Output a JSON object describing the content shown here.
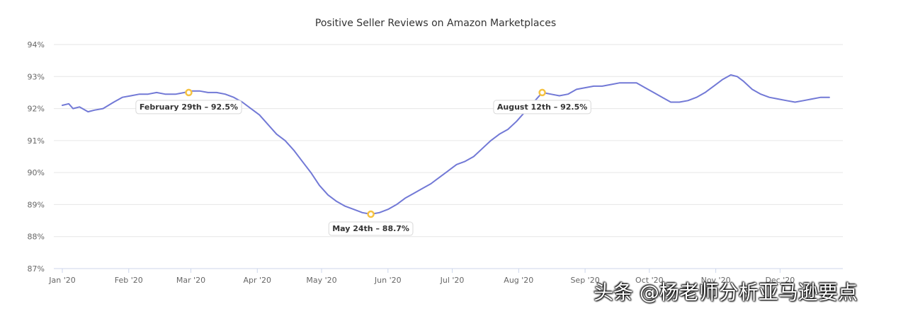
{
  "chart_data": {
    "type": "line",
    "title": "Positive Seller Reviews on Amazon Marketplaces",
    "xlabel": "",
    "ylabel": "",
    "ylim": [
      87,
      94
    ],
    "y_ticks": [
      "87%",
      "88%",
      "89%",
      "90%",
      "91%",
      "92%",
      "93%",
      "94%"
    ],
    "x_ticks": [
      "Jan '20",
      "Feb '20",
      "Mar '20",
      "Apr '20",
      "May '20",
      "Jun '20",
      "Jul '20",
      "Aug '20",
      "Sep '20",
      "Oct '20",
      "Nov '20",
      "Dec '20"
    ],
    "x_unit": "day of year (Jan 1 = 0)",
    "series": [
      {
        "name": "Positive Seller Reviews",
        "color": "#7279d6",
        "points": [
          [
            0,
            92.1
          ],
          [
            3,
            92.15
          ],
          [
            5,
            92.0
          ],
          [
            8,
            92.05
          ],
          [
            12,
            91.9
          ],
          [
            15,
            91.95
          ],
          [
            19,
            92.0
          ],
          [
            24,
            92.2
          ],
          [
            28,
            92.35
          ],
          [
            32,
            92.4
          ],
          [
            36,
            92.45
          ],
          [
            40,
            92.45
          ],
          [
            44,
            92.5
          ],
          [
            48,
            92.45
          ],
          [
            53,
            92.45
          ],
          [
            57,
            92.5
          ],
          [
            60,
            92.55
          ],
          [
            64,
            92.55
          ],
          [
            68,
            92.5
          ],
          [
            72,
            92.5
          ],
          [
            76,
            92.45
          ],
          [
            80,
            92.35
          ],
          [
            84,
            92.2
          ],
          [
            88,
            92.0
          ],
          [
            92,
            91.8
          ],
          [
            96,
            91.5
          ],
          [
            100,
            91.2
          ],
          [
            104,
            91.0
          ],
          [
            108,
            90.7
          ],
          [
            112,
            90.35
          ],
          [
            116,
            90.0
          ],
          [
            120,
            89.6
          ],
          [
            124,
            89.3
          ],
          [
            128,
            89.1
          ],
          [
            132,
            88.95
          ],
          [
            136,
            88.85
          ],
          [
            140,
            88.75
          ],
          [
            144,
            88.7
          ],
          [
            148,
            88.75
          ],
          [
            152,
            88.85
          ],
          [
            156,
            89.0
          ],
          [
            160,
            89.2
          ],
          [
            164,
            89.35
          ],
          [
            168,
            89.5
          ],
          [
            172,
            89.65
          ],
          [
            176,
            89.85
          ],
          [
            180,
            90.05
          ],
          [
            184,
            90.25
          ],
          [
            188,
            90.35
          ],
          [
            192,
            90.5
          ],
          [
            196,
            90.75
          ],
          [
            200,
            91.0
          ],
          [
            204,
            91.2
          ],
          [
            208,
            91.35
          ],
          [
            212,
            91.6
          ],
          [
            216,
            91.9
          ],
          [
            220,
            92.2
          ],
          [
            224,
            92.5
          ],
          [
            228,
            92.45
          ],
          [
            232,
            92.4
          ],
          [
            236,
            92.45
          ],
          [
            240,
            92.6
          ],
          [
            244,
            92.65
          ],
          [
            248,
            92.7
          ],
          [
            252,
            92.7
          ],
          [
            256,
            92.75
          ],
          [
            260,
            92.8
          ],
          [
            264,
            92.8
          ],
          [
            268,
            92.8
          ],
          [
            272,
            92.65
          ],
          [
            276,
            92.5
          ],
          [
            280,
            92.35
          ],
          [
            284,
            92.2
          ],
          [
            288,
            92.2
          ],
          [
            292,
            92.25
          ],
          [
            296,
            92.35
          ],
          [
            300,
            92.5
          ],
          [
            304,
            92.7
          ],
          [
            308,
            92.9
          ],
          [
            312,
            93.05
          ],
          [
            315,
            93.0
          ],
          [
            318,
            92.85
          ],
          [
            322,
            92.6
          ],
          [
            326,
            92.45
          ],
          [
            330,
            92.35
          ],
          [
            334,
            92.3
          ],
          [
            338,
            92.25
          ],
          [
            342,
            92.2
          ],
          [
            346,
            92.25
          ],
          [
            350,
            92.3
          ],
          [
            354,
            92.35
          ],
          [
            358,
            92.35
          ]
        ]
      }
    ],
    "annotations": [
      {
        "x": 59,
        "y": 92.5,
        "label": "February 29th – 92.5%",
        "placement": "below"
      },
      {
        "x": 144,
        "y": 88.7,
        "label": "May 24th – 88.7%",
        "placement": "below"
      },
      {
        "x": 224,
        "y": 92.5,
        "label": "August 12th – 92.5%",
        "placement": "below"
      }
    ],
    "grid": true
  },
  "watermark": {
    "text": "头条 @杨老师分析亚马逊要点"
  }
}
